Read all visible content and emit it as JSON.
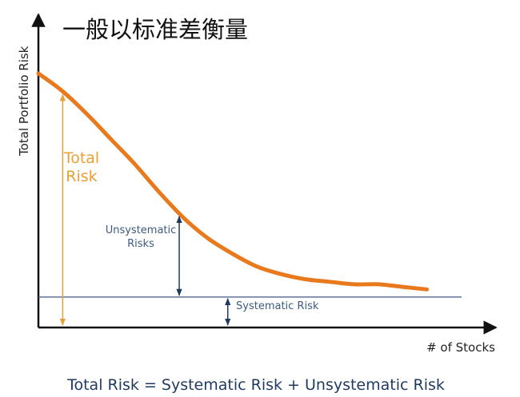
{
  "title": "一般以标准差衡量",
  "formula": "Total Risk = Systematic Risk + Unsystematic Risk",
  "chart_data": {
    "type": "line",
    "title": "一般以标准差衡量",
    "xlabel": "# of Stocks",
    "ylabel": "Total Portfolio Risk",
    "ticks": "none",
    "series": [
      {
        "values": [
          {
            "x": 0.0,
            "y": 1.0
          },
          {
            "x": 0.05,
            "y": 0.93
          },
          {
            "x": 0.1,
            "y": 0.84
          },
          {
            "x": 0.15,
            "y": 0.74
          },
          {
            "x": 0.2,
            "y": 0.64
          },
          {
            "x": 0.25,
            "y": 0.53
          },
          {
            "x": 0.3,
            "y": 0.43
          },
          {
            "x": 0.35,
            "y": 0.35
          },
          {
            "x": 0.4,
            "y": 0.29
          },
          {
            "x": 0.45,
            "y": 0.24
          },
          {
            "x": 0.5,
            "y": 0.21
          },
          {
            "x": 0.55,
            "y": 0.19
          },
          {
            "x": 0.6,
            "y": 0.18
          },
          {
            "x": 0.65,
            "y": 0.17
          },
          {
            "x": 0.7,
            "y": 0.17
          },
          {
            "x": 0.75,
            "y": 0.16
          },
          {
            "x": 0.8,
            "y": 0.15
          }
        ]
      }
    ],
    "systematic_level": 0.12,
    "annotations": {
      "total_risk": [
        "Total",
        "Risk"
      ],
      "unsystematic_risk": [
        "Unsystematic",
        "Risks"
      ],
      "systematic_risk": "Systematic Risk"
    },
    "colors": {
      "curve": "#e87a1d",
      "total_risk": "#e8a035",
      "annotation": "#1f3a5f",
      "axis": "#111111",
      "systematic_line": "#3d5a80"
    }
  }
}
